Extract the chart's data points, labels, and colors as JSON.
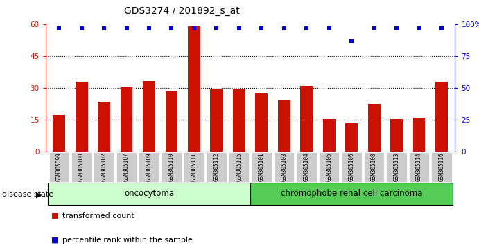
{
  "title": "GDS3274 / 201892_s_at",
  "categories": [
    "GSM305099",
    "GSM305100",
    "GSM305102",
    "GSM305107",
    "GSM305109",
    "GSM305110",
    "GSM305111",
    "GSM305112",
    "GSM305115",
    "GSM305101",
    "GSM305103",
    "GSM305104",
    "GSM305105",
    "GSM305106",
    "GSM305108",
    "GSM305113",
    "GSM305114",
    "GSM305116"
  ],
  "bar_values": [
    17.5,
    33.0,
    23.5,
    30.5,
    33.5,
    28.5,
    59.0,
    29.5,
    29.5,
    27.5,
    24.5,
    31.0,
    15.5,
    13.5,
    22.5,
    15.5,
    16.0,
    33.0
  ],
  "percentile_values": [
    97,
    97,
    97,
    97,
    97,
    97,
    97,
    97,
    97,
    97,
    97,
    97,
    97,
    87,
    97,
    97,
    97,
    97
  ],
  "bar_color": "#cc1100",
  "dot_color": "#0000cc",
  "ylim_left": [
    0,
    60
  ],
  "ylim_right": [
    0,
    100
  ],
  "yticks_left": [
    0,
    15,
    30,
    45,
    60
  ],
  "yticks_right": [
    0,
    25,
    50,
    75,
    100
  ],
  "ytick_labels_right": [
    "0",
    "25",
    "50",
    "75",
    "100%"
  ],
  "grid_values": [
    15,
    30,
    45
  ],
  "oncocytoma_count": 9,
  "chromophobe_count": 9,
  "label_oncocytoma": "oncocytoma",
  "label_chromophobe": "chromophobe renal cell carcinoma",
  "disease_state_label": "disease state",
  "legend_bar_label": "transformed count",
  "legend_dot_label": "percentile rank within the sample",
  "bg_color": "#ffffff",
  "group_box_color_onco": "#ccffcc",
  "group_box_color_chrom": "#55cc55"
}
